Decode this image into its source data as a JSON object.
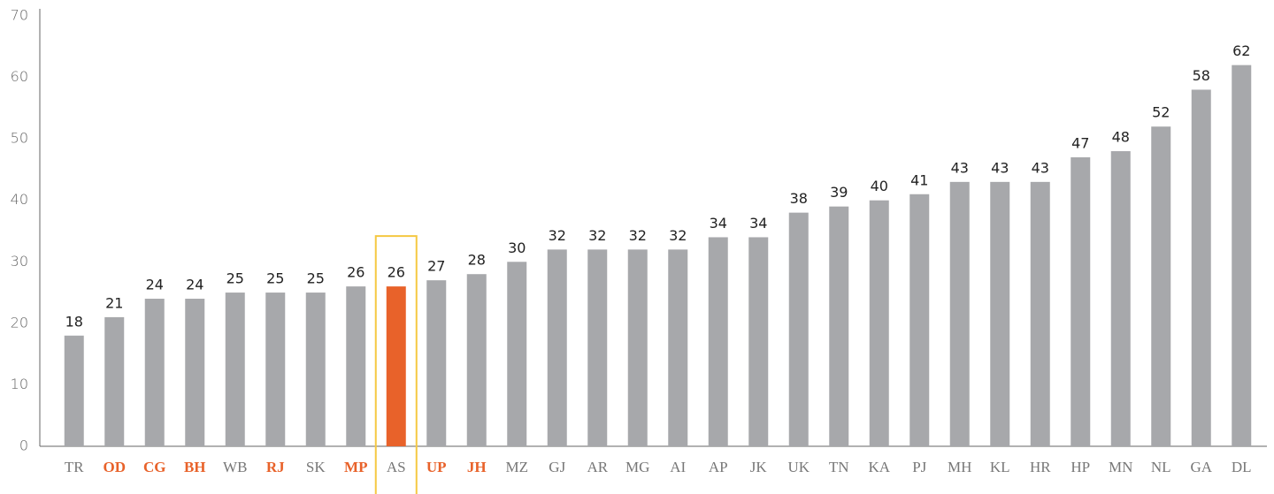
{
  "chart_data": {
    "type": "bar",
    "categories": [
      "TR",
      "OD",
      "CG",
      "BH",
      "WB",
      "RJ",
      "SK",
      "MP",
      "AS",
      "UP",
      "JH",
      "MZ",
      "GJ",
      "AR",
      "MG",
      "AI",
      "AP",
      "JK",
      "UK",
      "TN",
      "KA",
      "PJ",
      "MH",
      "KL",
      "HR",
      "HP",
      "MN",
      "NL",
      "GA",
      "DL"
    ],
    "values": [
      18,
      21,
      24,
      24,
      25,
      25,
      25,
      26,
      26,
      27,
      28,
      30,
      32,
      32,
      32,
      32,
      34,
      34,
      38,
      39,
      40,
      41,
      43,
      43,
      43,
      47,
      48,
      52,
      58,
      62
    ],
    "colors": [
      "#a7a8ab",
      "#a7a8ab",
      "#a7a8ab",
      "#a7a8ab",
      "#a7a8ab",
      "#a7a8ab",
      "#a7a8ab",
      "#a7a8ab",
      "#e8622a",
      "#a7a8ab",
      "#a7a8ab",
      "#a7a8ab",
      "#a7a8ab",
      "#a7a8ab",
      "#a7a8ab",
      "#a7a8ab",
      "#a7a8ab",
      "#a7a8ab",
      "#a7a8ab",
      "#a7a8ab",
      "#a7a8ab",
      "#a7a8ab",
      "#a7a8ab",
      "#a7a8ab",
      "#a7a8ab",
      "#a7a8ab",
      "#a7a8ab",
      "#a7a8ab",
      "#a7a8ab",
      "#a7a8ab"
    ],
    "emphasized_labels": [
      1,
      2,
      3,
      5,
      7,
      9,
      10
    ],
    "emphasis_color": "#e8622a",
    "boxed_category": 8,
    "box_color": "#f5c842",
    "ylim": [
      0,
      70
    ],
    "yticks": [
      0,
      10,
      20,
      30,
      40,
      50,
      60,
      70
    ],
    "grid": false
  }
}
